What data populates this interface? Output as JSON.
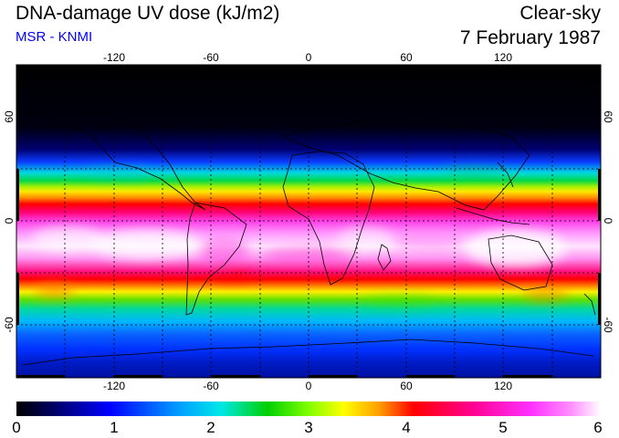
{
  "header": {
    "title": "DNA-damage UV dose (kJ/m2)",
    "source": "MSR - KNMI",
    "condition": "Clear-sky",
    "date": "7 February 1987"
  },
  "map": {
    "projection": "equirectangular",
    "lon_range": [
      -180,
      180
    ],
    "lat_range": [
      -90,
      90
    ],
    "lon_ticks": [
      "-120",
      "-60",
      "0",
      "60",
      "120"
    ],
    "lat_ticks": [
      "60",
      "0",
      "-60"
    ],
    "field": "UV dose, peaks in southern subtropics (summer)"
  },
  "colorbar": {
    "ticks": [
      "0",
      "1",
      "2",
      "3",
      "4",
      "5",
      "6"
    ],
    "colors": [
      "#000000",
      "#0000b0",
      "#0060ff",
      "#00e0e0",
      "#00d000",
      "#a0ff00",
      "#ffff00",
      "#ffa000",
      "#ff0000",
      "#ff0090",
      "#ff30ff",
      "#ffffff"
    ]
  }
}
